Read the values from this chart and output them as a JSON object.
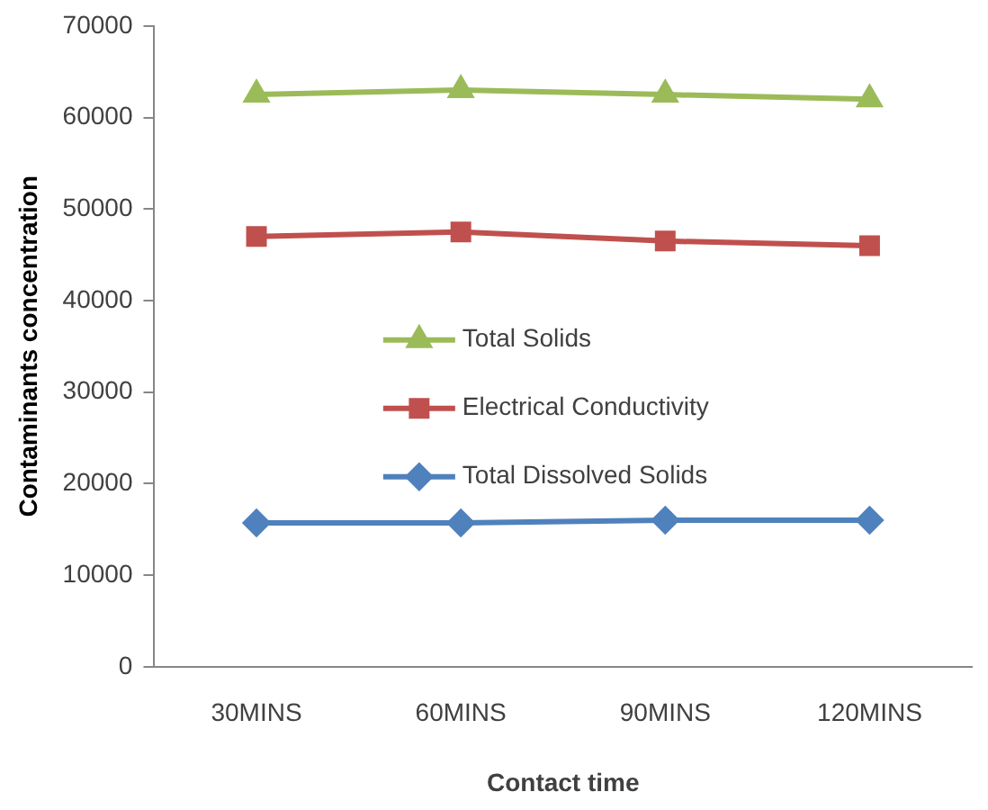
{
  "chart_data": {
    "type": "line",
    "xlabel": "Contact time",
    "ylabel": "Contaminants concentration",
    "categories": [
      "30MINS",
      "60MINS",
      "90MINS",
      "120MINS"
    ],
    "series": [
      {
        "name": "Total Solids",
        "color": "#9bbb59",
        "marker": "triangle",
        "values": [
          62500,
          63000,
          62500,
          62000
        ]
      },
      {
        "name": "Electrical Conductivity",
        "color": "#c0504d",
        "marker": "square",
        "values": [
          47000,
          47500,
          46500,
          46000
        ]
      },
      {
        "name": "Total Dissolved Solids",
        "color": "#4f81bd",
        "marker": "diamond",
        "values": [
          15700,
          15700,
          16000,
          16000
        ]
      }
    ],
    "ylim": [
      0,
      70000
    ],
    "yticks": [
      0,
      10000,
      20000,
      30000,
      40000,
      50000,
      60000,
      70000
    ],
    "grid": false,
    "legend": "center",
    "line_style": "solid"
  }
}
